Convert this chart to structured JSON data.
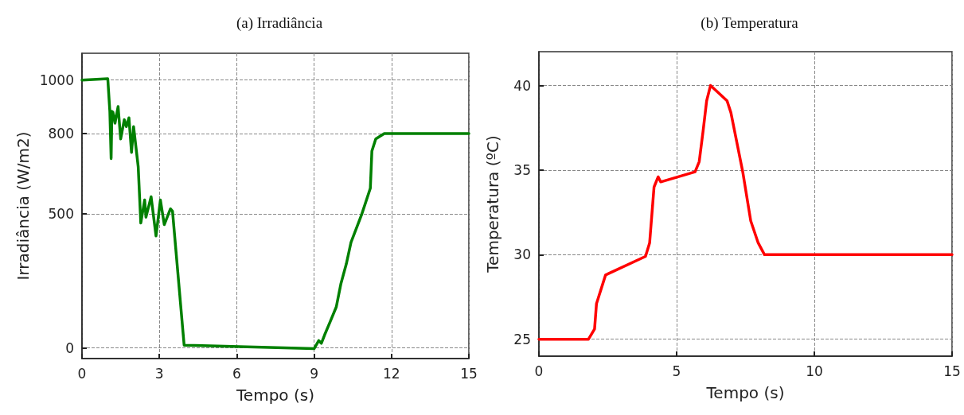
{
  "chart_data": [
    {
      "type": "line",
      "title": "(a) Irradiância",
      "xlabel": "Tempo (s)",
      "ylabel": "Irradiância (W/m2)",
      "x": [
        0,
        1.0,
        1.08,
        1.13,
        1.16,
        1.2,
        1.28,
        1.4,
        1.5,
        1.64,
        1.72,
        1.82,
        1.92,
        2.0,
        2.18,
        2.28,
        2.43,
        2.48,
        2.68,
        2.87,
        3.04,
        3.19,
        3.43,
        3.51,
        3.96,
        9.0,
        9.18,
        9.28,
        9.41,
        9.62,
        9.86,
        10.04,
        10.25,
        10.43,
        10.84,
        11.18,
        11.24,
        11.39,
        11.72,
        15
      ],
      "series": [
        {
          "color": "#008000",
          "values": [
            1000,
            1005,
            883,
            707,
            883,
            880,
            839,
            901,
            780,
            852,
            826,
            859,
            730,
            826,
            676,
            466,
            552,
            488,
            564,
            418,
            552,
            460,
            519,
            510,
            10,
            -3,
            27,
            17,
            49,
            97,
            153,
            240,
            314,
            394,
            497,
            596,
            735,
            780,
            800,
            800
          ]
        }
      ],
      "xlim": [
        0,
        15
      ],
      "xticks": [
        0,
        3,
        6,
        9,
        12,
        15
      ],
      "ylim": [
        -40,
        1100
      ],
      "yticks": [
        0,
        500,
        800,
        1000
      ],
      "grid": true,
      "marker": "none",
      "line_style": "solid"
    },
    {
      "type": "line",
      "title": "(b) Temperatura",
      "xlabel": "Tempo (s)",
      "ylabel": "Temperatura (ºC)",
      "x": [
        0,
        1.8,
        2.02,
        2.09,
        2.42,
        3.87,
        4.02,
        4.18,
        4.33,
        4.42,
        5.67,
        5.82,
        5.96,
        6.09,
        6.23,
        6.83,
        6.97,
        7.4,
        7.69,
        7.96,
        8.19,
        15
      ],
      "series": [
        {
          "color": "#ff0000",
          "values": [
            25,
            25,
            25.6,
            27.1,
            28.8,
            29.9,
            30.7,
            34.0,
            34.6,
            34.3,
            34.9,
            35.5,
            37.3,
            39.1,
            40.0,
            39.1,
            38.4,
            34.9,
            32.0,
            30.7,
            30.0,
            30.0
          ]
        }
      ],
      "xlim": [
        0,
        15
      ],
      "xticks": [
        0,
        5,
        10,
        15
      ],
      "ylim": [
        24,
        42
      ],
      "yticks": [
        25,
        30,
        35,
        40
      ],
      "grid": true,
      "marker": "none",
      "line_style": "solid"
    }
  ]
}
